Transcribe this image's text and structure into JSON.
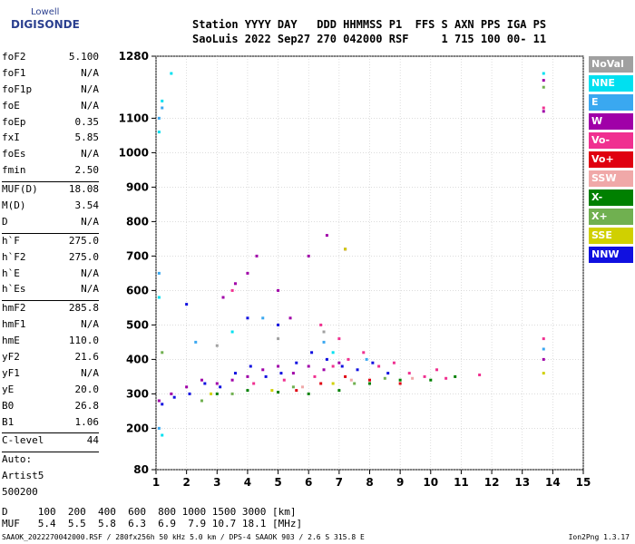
{
  "logo": {
    "line1": "Lowell",
    "line2": "DIGISONDE"
  },
  "header": {
    "line1": "Station YYYY DAY   DDD HHMMSS P1  FFS S AXN PPS IGA PS",
    "line2": "SaoLuis 2022 Sep27 270 042000 RSF     1 715 100 00- 11"
  },
  "params": [
    {
      "k": "foF2",
      "v": "5.100"
    },
    {
      "k": "foF1",
      "v": "N/A"
    },
    {
      "k": "foF1p",
      "v": "N/A"
    },
    {
      "k": "foE",
      "v": "N/A"
    },
    {
      "k": "foEp",
      "v": "0.35"
    },
    {
      "k": "fxI",
      "v": "5.85"
    },
    {
      "k": "foEs",
      "v": "N/A"
    },
    {
      "k": "fmin",
      "v": "2.50"
    },
    {
      "sep": true
    },
    {
      "k": "MUF(D)",
      "v": "18.08"
    },
    {
      "k": "M(D)",
      "v": "3.54"
    },
    {
      "k": "D",
      "v": "N/A"
    },
    {
      "sep": true
    },
    {
      "k": "h`F",
      "v": "275.0"
    },
    {
      "k": "h`F2",
      "v": "275.0"
    },
    {
      "k": "h`E",
      "v": "N/A"
    },
    {
      "k": "h`Es",
      "v": "N/A"
    },
    {
      "sep": true
    },
    {
      "k": "hmF2",
      "v": "285.8"
    },
    {
      "k": "hmF1",
      "v": "N/A"
    },
    {
      "k": "hmE",
      "v": "110.0"
    },
    {
      "k": "yF2",
      "v": "21.6"
    },
    {
      "k": "yF1",
      "v": "N/A"
    },
    {
      "k": "yE",
      "v": "20.0"
    },
    {
      "k": "B0",
      "v": "26.8"
    },
    {
      "k": "B1",
      "v": "1.06"
    },
    {
      "sep": true
    },
    {
      "k": "C-level",
      "v": "44"
    },
    {
      "sep": true
    },
    {
      "k": "Auto:",
      "v": ""
    },
    {
      "k": "Artist5",
      "v": ""
    },
    {
      "k": "500200",
      "v": ""
    }
  ],
  "legend": [
    {
      "label": "NoVal",
      "color": "#a0a0a0"
    },
    {
      "label": "NNE",
      "color": "#00e0f0"
    },
    {
      "label": "E",
      "color": "#3aa8f0"
    },
    {
      "label": "W",
      "color": "#a000a8"
    },
    {
      "label": "Vo-",
      "color": "#f03090"
    },
    {
      "label": "Vo+",
      "color": "#e00010"
    },
    {
      "label": "SSW",
      "color": "#f0a8a8"
    },
    {
      "label": "X-",
      "color": "#008000"
    },
    {
      "label": "X+",
      "color": "#70b050"
    },
    {
      "label": "SSE",
      "color": "#d0d000"
    },
    {
      "label": "NNW",
      "color": "#1010e0"
    }
  ],
  "bottom": {
    "line1": "D     100  200  400  600  800 1000 1500 3000 [km]",
    "line2": "MUF   5.4  5.5  5.8  6.3  6.9  7.9 10.7 18.1 [MHz]"
  },
  "footer": "SAAOK_2022270042000.RSF / 280fx256h 50 kHz 5.0 km / DPS-4 SAAOK 903 / 2.6 S 315.8 E",
  "version": "Ion2Png 1.3.17",
  "chart_data": {
    "type": "scatter",
    "title": "",
    "xlabel": "",
    "ylabel": "",
    "xlim": [
      1,
      15
    ],
    "ylim": [
      80,
      1280
    ],
    "x_ticks": [
      1,
      2,
      3,
      4,
      5,
      6,
      7,
      8,
      9,
      10,
      11,
      12,
      13,
      14,
      15
    ],
    "y_ticks": [
      80,
      200,
      300,
      400,
      500,
      600,
      700,
      800,
      900,
      1000,
      1100,
      1280
    ],
    "grid": true,
    "series": [
      {
        "name": "W",
        "color": "#a000a8",
        "points": [
          [
            1.1,
            280
          ],
          [
            1.5,
            300
          ],
          [
            2.0,
            320
          ],
          [
            2.5,
            340
          ],
          [
            3.0,
            330
          ],
          [
            3.5,
            340
          ],
          [
            4.0,
            350
          ],
          [
            4.5,
            370
          ],
          [
            5.0,
            380
          ],
          [
            5.5,
            360
          ],
          [
            6.0,
            380
          ],
          [
            6.5,
            370
          ],
          [
            7.0,
            390
          ],
          [
            3.2,
            580
          ],
          [
            3.6,
            620
          ],
          [
            4.0,
            650
          ],
          [
            4.3,
            700
          ],
          [
            5.0,
            600
          ],
          [
            5.4,
            520
          ],
          [
            6.0,
            700
          ],
          [
            6.6,
            760
          ],
          [
            7.2,
            720
          ],
          [
            13.7,
            1120
          ],
          [
            13.7,
            1210
          ],
          [
            13.7,
            400
          ]
        ]
      },
      {
        "name": "NNW",
        "color": "#1010e0",
        "points": [
          [
            1.2,
            270
          ],
          [
            1.6,
            290
          ],
          [
            2.1,
            300
          ],
          [
            2.6,
            330
          ],
          [
            3.1,
            320
          ],
          [
            3.6,
            360
          ],
          [
            4.1,
            380
          ],
          [
            4.6,
            350
          ],
          [
            5.1,
            360
          ],
          [
            5.6,
            390
          ],
          [
            6.1,
            420
          ],
          [
            6.6,
            400
          ],
          [
            7.1,
            380
          ],
          [
            7.6,
            370
          ],
          [
            8.1,
            390
          ],
          [
            8.6,
            360
          ],
          [
            2.0,
            560
          ],
          [
            4.0,
            520
          ],
          [
            5.0,
            500
          ]
        ]
      },
      {
        "name": "Vo-",
        "color": "#f03090",
        "points": [
          [
            4.2,
            330
          ],
          [
            5.2,
            340
          ],
          [
            6.2,
            350
          ],
          [
            6.8,
            380
          ],
          [
            7.3,
            400
          ],
          [
            7.8,
            420
          ],
          [
            8.3,
            380
          ],
          [
            8.8,
            390
          ],
          [
            9.3,
            360
          ],
          [
            9.8,
            350
          ],
          [
            10.2,
            370
          ],
          [
            10.5,
            345
          ],
          [
            11.6,
            355
          ],
          [
            6.4,
            500
          ],
          [
            7.0,
            460
          ],
          [
            3.5,
            600
          ],
          [
            13.7,
            460
          ],
          [
            13.7,
            1130
          ]
        ]
      },
      {
        "name": "Vo+",
        "color": "#e00010",
        "points": [
          [
            5.6,
            310
          ],
          [
            6.4,
            330
          ],
          [
            7.2,
            350
          ],
          [
            8.0,
            340
          ],
          [
            9.0,
            330
          ]
        ]
      },
      {
        "name": "NNE",
        "color": "#00e0f0",
        "points": [
          [
            1.1,
            1060
          ],
          [
            1.2,
            1150
          ],
          [
            1.5,
            1230
          ],
          [
            1.1,
            580
          ],
          [
            1.2,
            180
          ],
          [
            3.5,
            480
          ],
          [
            6.8,
            420
          ],
          [
            13.7,
            1230
          ]
        ]
      },
      {
        "name": "E",
        "color": "#3aa8f0",
        "points": [
          [
            1.1,
            1100
          ],
          [
            1.2,
            1130
          ],
          [
            1.1,
            650
          ],
          [
            1.1,
            200
          ],
          [
            2.3,
            450
          ],
          [
            4.5,
            520
          ],
          [
            6.5,
            450
          ],
          [
            7.9,
            400
          ],
          [
            13.7,
            430
          ]
        ]
      },
      {
        "name": "X-",
        "color": "#008000",
        "points": [
          [
            3.0,
            300
          ],
          [
            4.0,
            310
          ],
          [
            5.0,
            305
          ],
          [
            6.0,
            300
          ],
          [
            7.0,
            310
          ],
          [
            8.0,
            330
          ],
          [
            9.0,
            340
          ],
          [
            10.0,
            340
          ],
          [
            10.8,
            350
          ]
        ]
      },
      {
        "name": "X+",
        "color": "#70b050",
        "points": [
          [
            2.5,
            280
          ],
          [
            3.5,
            300
          ],
          [
            5.5,
            320
          ],
          [
            7.5,
            330
          ],
          [
            8.5,
            345
          ],
          [
            1.2,
            420
          ],
          [
            13.7,
            1190
          ]
        ]
      },
      {
        "name": "SSE",
        "color": "#d0d000",
        "points": [
          [
            2.8,
            300
          ],
          [
            4.8,
            310
          ],
          [
            6.8,
            330
          ],
          [
            7.2,
            720
          ],
          [
            13.7,
            360
          ]
        ]
      },
      {
        "name": "SSW",
        "color": "#f0a8a8",
        "points": [
          [
            5.8,
            320
          ],
          [
            7.4,
            340
          ],
          [
            9.4,
            345
          ]
        ]
      },
      {
        "name": "NoVal",
        "color": "#a0a0a0",
        "points": [
          [
            3.0,
            440
          ],
          [
            5.0,
            460
          ],
          [
            6.5,
            480
          ]
        ]
      }
    ]
  }
}
